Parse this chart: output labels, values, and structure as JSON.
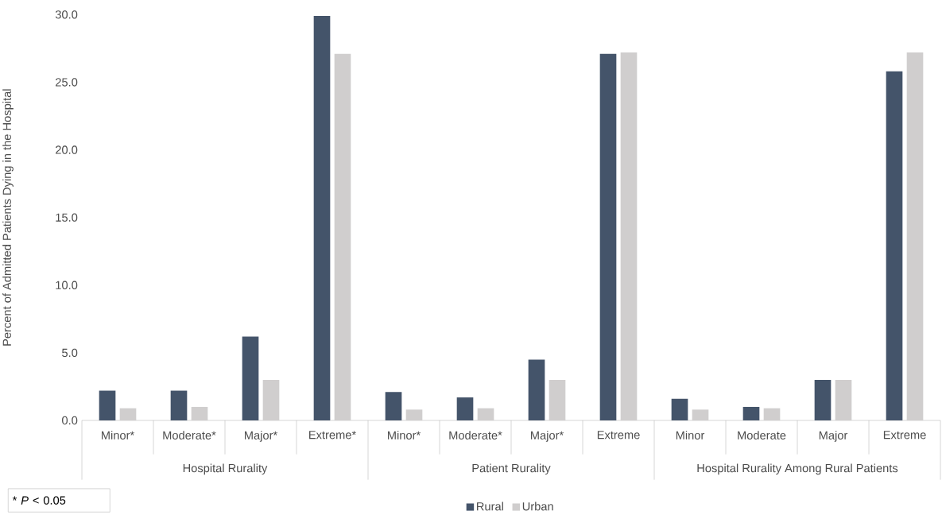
{
  "chart_data": {
    "type": "bar",
    "ylabel": "Percent of Admitted Patients Dying in the Hospital",
    "categories": [
      "Minor*",
      "Moderate*",
      "Major*",
      "Extreme*",
      "Minor*",
      "Moderate*",
      "Major*",
      "Extreme",
      "Minor",
      "Moderate",
      "Major",
      "Extreme"
    ],
    "series": [
      {
        "name": "Rural",
        "color": "#44546a",
        "values": [
          2.2,
          2.2,
          6.2,
          29.9,
          2.1,
          1.7,
          4.5,
          27.1,
          1.6,
          1.0,
          3.0,
          25.8
        ]
      },
      {
        "name": "Urban",
        "color": "#d0cece",
        "values": [
          0.9,
          1.0,
          3.0,
          27.1,
          0.8,
          0.9,
          3.0,
          27.2,
          0.8,
          0.9,
          3.0,
          27.2
        ]
      }
    ],
    "annotations": [
      "Hospital Rurality",
      "Patient Rurality",
      "Hospital Rurality Among Rural Patients",
      "* *P* < 0.05"
    ],
    "ylim": [
      0,
      30
    ],
    "yticks": [
      {
        "value": 0,
        "label": "0.0"
      },
      {
        "value": 5,
        "label": "5.0"
      },
      {
        "value": 10,
        "label": "10.0"
      },
      {
        "value": 15,
        "label": "15.0"
      },
      {
        "value": 20,
        "label": "20.0"
      },
      {
        "value": 25,
        "label": "25.0"
      },
      {
        "value": 30,
        "label": "30.0"
      }
    ],
    "legend": "bottom"
  }
}
